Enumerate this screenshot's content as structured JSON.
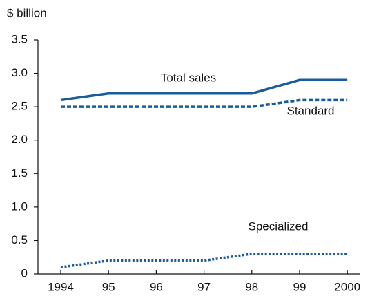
{
  "chart_data": {
    "type": "line",
    "y_axis_label": "$ billion",
    "categories": [
      "1994",
      "95",
      "96",
      "97",
      "98",
      "99",
      "2000"
    ],
    "series": [
      {
        "name": "Total sales",
        "color": "#1a5b9c",
        "style": "solid",
        "values": [
          2.6,
          2.7,
          2.7,
          2.7,
          2.7,
          2.9,
          2.9
        ]
      },
      {
        "name": "Standard",
        "color": "#1a5b9c",
        "style": "dashed",
        "values": [
          2.5,
          2.5,
          2.5,
          2.5,
          2.5,
          2.6,
          2.6
        ]
      },
      {
        "name": "Specialized",
        "color": "#1a5b9c",
        "style": "dotted",
        "values": [
          0.1,
          0.2,
          0.2,
          0.2,
          0.3,
          0.3,
          0.3
        ]
      }
    ],
    "ylim": [
      0,
      3.5
    ],
    "yticks": [
      0,
      0.5,
      {
        "value": 1,
        "label": "1.0"
      },
      1.5,
      {
        "value": 2,
        "label": "2.0"
      },
      2.5,
      {
        "value": 3,
        "label": "3.0"
      },
      3.5
    ],
    "grid": false
  }
}
